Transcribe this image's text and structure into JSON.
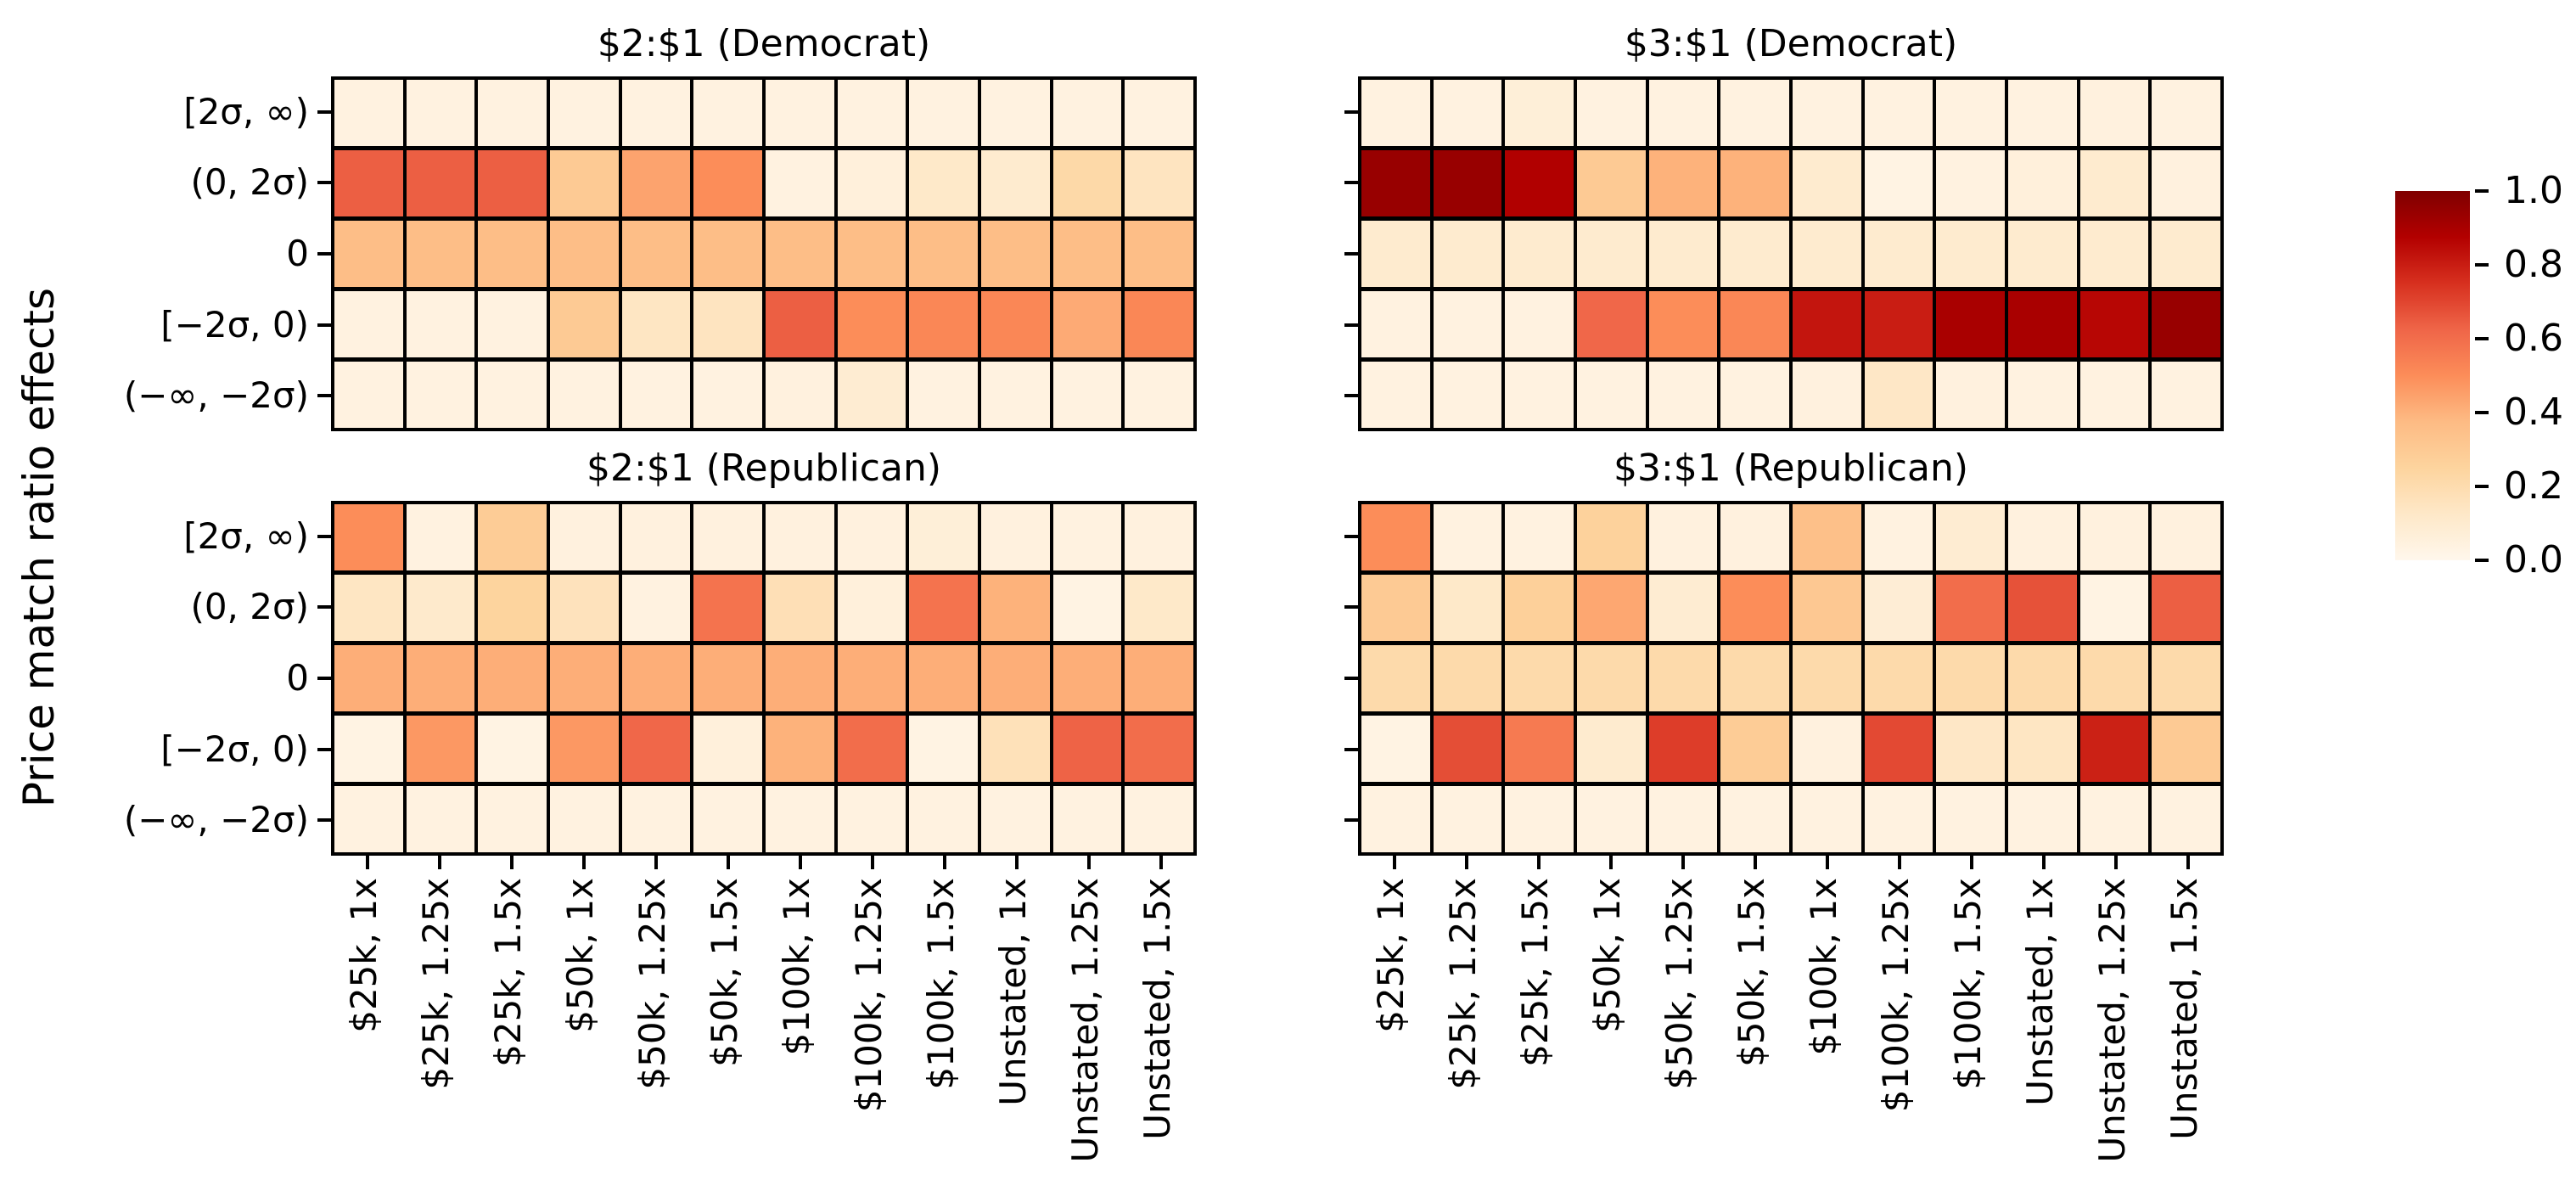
{
  "chart_data": {
    "type": "heatmap",
    "colormap": "OrRd",
    "colormap_stops": [
      "#fff7ec",
      "#fee8c8",
      "#fdd49e",
      "#fdbb84",
      "#fc8d59",
      "#ef6548",
      "#d7301f",
      "#b30000",
      "#7f0000"
    ],
    "vmin": 0.0,
    "vmax": 1.0,
    "ylabel": "Price match ratio effects",
    "x_categories": [
      "$25k, 1x",
      "$25k, 1.25x",
      "$25k, 1.5x",
      "$50k, 1x",
      "$50k, 1.25x",
      "$50k, 1.5x",
      "$100k, 1x",
      "$100k, 1.25x",
      "$100k, 1.5x",
      "Unstated, 1x",
      "Unstated, 1.25x",
      "Unstated, 1.5x"
    ],
    "y_categories": [
      "[2σ, ∞)",
      "(0, 2σ)",
      "0",
      "[−2σ, 0)",
      "(−∞, −2σ)"
    ],
    "colorbar_ticks": [
      "0.0",
      "0.2",
      "0.4",
      "0.6",
      "0.8",
      "1.0"
    ],
    "colorbar_tick_values": [
      0.0,
      0.2,
      0.4,
      0.6,
      0.8,
      1.0
    ],
    "panels": [
      {
        "title": "$2:$1 (Democrat)",
        "grid_position": "top-left",
        "values": [
          [
            0.04,
            0.04,
            0.04,
            0.04,
            0.04,
            0.04,
            0.04,
            0.04,
            0.04,
            0.04,
            0.04,
            0.04
          ],
          [
            0.64,
            0.64,
            0.64,
            0.3,
            0.44,
            0.5,
            0.04,
            0.06,
            0.12,
            0.1,
            0.22,
            0.15
          ],
          [
            0.36,
            0.36,
            0.36,
            0.36,
            0.36,
            0.36,
            0.36,
            0.36,
            0.36,
            0.36,
            0.36,
            0.36
          ],
          [
            0.04,
            0.04,
            0.04,
            0.3,
            0.14,
            0.15,
            0.64,
            0.5,
            0.52,
            0.52,
            0.42,
            0.52
          ],
          [
            0.04,
            0.04,
            0.04,
            0.04,
            0.04,
            0.04,
            0.05,
            0.09,
            0.04,
            0.04,
            0.04,
            0.04
          ]
        ]
      },
      {
        "title": "$3:$1 (Democrat)",
        "grid_position": "top-right",
        "values": [
          [
            0.04,
            0.04,
            0.07,
            0.04,
            0.04,
            0.04,
            0.04,
            0.04,
            0.04,
            0.04,
            0.05,
            0.04
          ],
          [
            0.94,
            0.94,
            0.88,
            0.3,
            0.4,
            0.4,
            0.1,
            0.03,
            0.04,
            0.06,
            0.1,
            0.05
          ],
          [
            0.1,
            0.1,
            0.1,
            0.1,
            0.1,
            0.1,
            0.1,
            0.1,
            0.1,
            0.1,
            0.1,
            0.1
          ],
          [
            0.04,
            0.04,
            0.04,
            0.62,
            0.5,
            0.52,
            0.82,
            0.8,
            0.9,
            0.9,
            0.86,
            0.94
          ],
          [
            0.04,
            0.04,
            0.04,
            0.04,
            0.04,
            0.04,
            0.05,
            0.13,
            0.05,
            0.04,
            0.04,
            0.04
          ]
        ]
      },
      {
        "title": "$2:$1 (Republican)",
        "grid_position": "bottom-left",
        "values": [
          [
            0.5,
            0.04,
            0.29,
            0.05,
            0.05,
            0.05,
            0.05,
            0.05,
            0.07,
            0.05,
            0.04,
            0.05
          ],
          [
            0.14,
            0.11,
            0.25,
            0.16,
            0.04,
            0.58,
            0.18,
            0.06,
            0.58,
            0.4,
            0.03,
            0.12
          ],
          [
            0.41,
            0.41,
            0.41,
            0.41,
            0.41,
            0.41,
            0.41,
            0.41,
            0.41,
            0.41,
            0.41,
            0.41
          ],
          [
            0.03,
            0.47,
            0.03,
            0.47,
            0.62,
            0.06,
            0.4,
            0.6,
            0.03,
            0.17,
            0.63,
            0.6
          ],
          [
            0.04,
            0.04,
            0.04,
            0.04,
            0.04,
            0.04,
            0.04,
            0.04,
            0.04,
            0.04,
            0.04,
            0.04
          ]
        ]
      },
      {
        "title": "$3:$1 (Republican)",
        "grid_position": "bottom-right",
        "values": [
          [
            0.5,
            0.04,
            0.04,
            0.26,
            0.05,
            0.05,
            0.35,
            0.04,
            0.09,
            0.05,
            0.05,
            0.05
          ],
          [
            0.3,
            0.12,
            0.27,
            0.43,
            0.09,
            0.5,
            0.31,
            0.08,
            0.6,
            0.67,
            0.03,
            0.64
          ],
          [
            0.21,
            0.21,
            0.21,
            0.21,
            0.21,
            0.21,
            0.21,
            0.21,
            0.21,
            0.21,
            0.21,
            0.21
          ],
          [
            0.03,
            0.68,
            0.56,
            0.1,
            0.72,
            0.29,
            0.05,
            0.69,
            0.13,
            0.14,
            0.79,
            0.3
          ],
          [
            0.04,
            0.04,
            0.04,
            0.04,
            0.04,
            0.04,
            0.04,
            0.04,
            0.04,
            0.04,
            0.04,
            0.04
          ]
        ]
      }
    ]
  }
}
